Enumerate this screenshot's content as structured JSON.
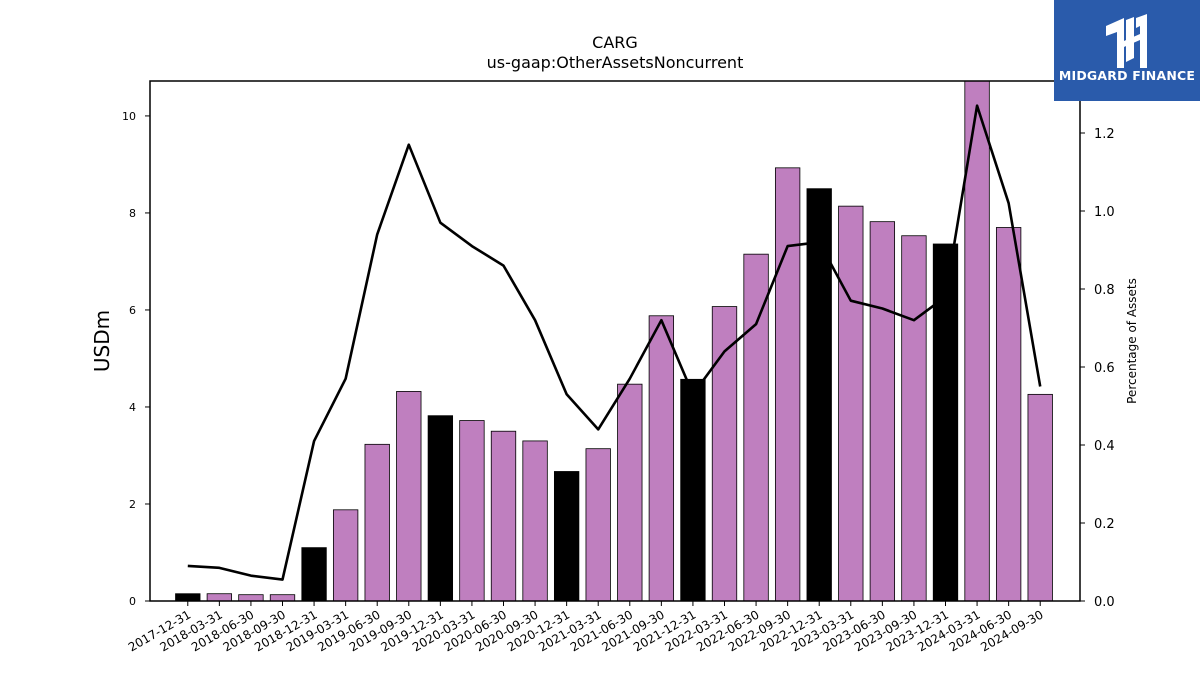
{
  "chart_data": {
    "type": "bar",
    "title": "CARG",
    "subtitle": "us-gaap:OtherAssetsNoncurrent",
    "ylabel": "USDm",
    "y2label": "Percentage of Assets",
    "ylim": [
      0,
      10.72
    ],
    "y2lim": [
      0,
      1.3333
    ],
    "yticks": [
      0,
      2,
      4,
      6,
      8,
      10
    ],
    "y2ticks": [
      "0.0",
      "0.2",
      "0.4",
      "0.6",
      "0.8",
      "1.0",
      "1.2"
    ],
    "categories": [
      "2017-12-31",
      "2018-03-31",
      "2018-06-30",
      "2018-09-30",
      "2018-12-31",
      "2019-03-31",
      "2019-06-30",
      "2019-09-30",
      "2019-12-31",
      "2020-03-31",
      "2020-06-30",
      "2020-09-30",
      "2020-12-31",
      "2021-03-31",
      "2021-06-30",
      "2021-09-30",
      "2021-12-31",
      "2022-03-31",
      "2022-06-30",
      "2022-09-30",
      "2022-12-31",
      "2023-03-31",
      "2023-06-30",
      "2023-09-30",
      "2023-12-31",
      "2024-03-31",
      "2024-06-30",
      "2024-09-30"
    ],
    "series": [
      {
        "type": "bar",
        "values": [
          0.15,
          0.15,
          0.13,
          0.13,
          1.1,
          1.88,
          3.23,
          4.32,
          3.82,
          3.72,
          3.5,
          3.3,
          2.67,
          3.14,
          4.47,
          5.88,
          4.57,
          6.07,
          7.15,
          8.93,
          8.5,
          8.14,
          7.82,
          7.53,
          7.36,
          10.72,
          7.7,
          4.26
        ],
        "fiscal_year_end": [
          true,
          false,
          false,
          false,
          true,
          false,
          false,
          false,
          true,
          false,
          false,
          false,
          true,
          false,
          false,
          false,
          true,
          false,
          false,
          false,
          true,
          false,
          false,
          false,
          true,
          false,
          false,
          false
        ]
      },
      {
        "type": "line",
        "axis": "right",
        "values": [
          0.09,
          0.085,
          0.065,
          0.055,
          0.41,
          0.57,
          0.94,
          1.17,
          0.97,
          0.91,
          0.86,
          0.72,
          0.53,
          0.44,
          0.57,
          0.72,
          0.53,
          0.64,
          0.71,
          0.91,
          0.92,
          0.77,
          0.75,
          0.72,
          0.78,
          1.27,
          1.02,
          0.55
        ]
      }
    ],
    "colors": {
      "bar": "#bf7fbf",
      "bar_fiscal_year_end": "#000000",
      "line": "#000000",
      "bar_edge": "#000000"
    }
  },
  "logo": {
    "text": "MIDGARD FINANCE",
    "bg": "#2a5bab"
  }
}
